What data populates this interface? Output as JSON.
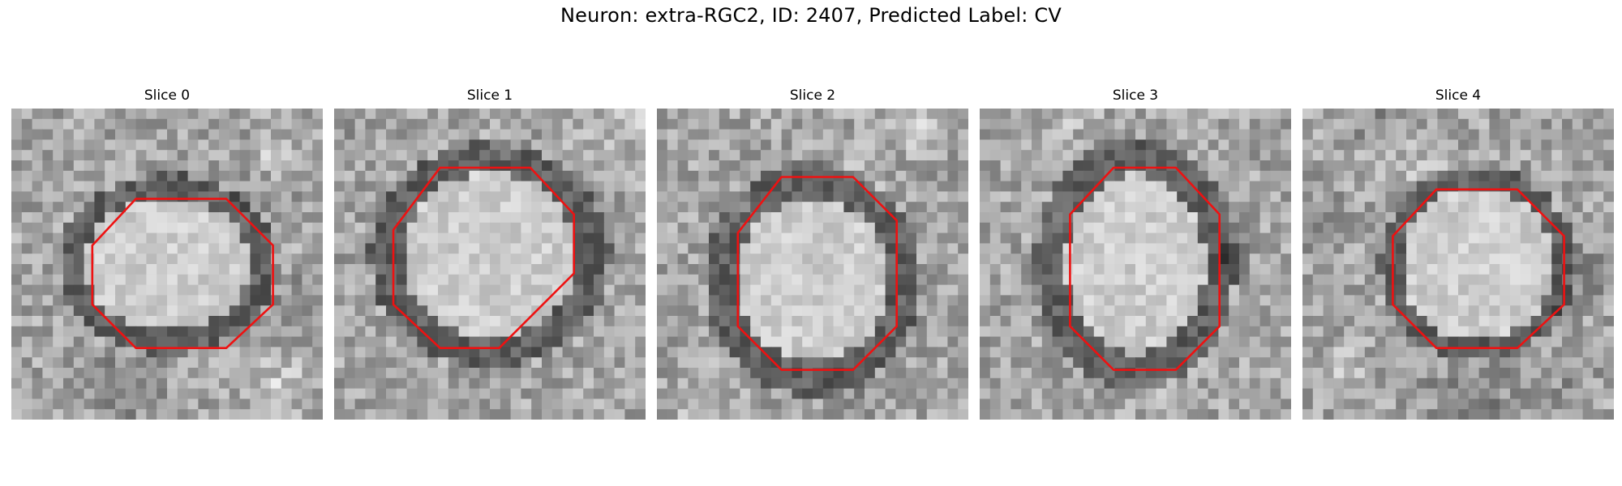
{
  "figure": {
    "title": "Neuron: extra-RGC2, ID: 2407, Predicted Label: CV",
    "outline_color": "#ee1111",
    "colormap": "gray"
  },
  "panels": [
    {
      "label": "Slice 0",
      "seed": 11
    },
    {
      "label": "Slice 1",
      "seed": 23
    },
    {
      "label": "Slice 2",
      "seed": 37
    },
    {
      "label": "Slice 3",
      "seed": 41
    },
    {
      "label": "Slice 4",
      "seed": 53
    }
  ]
}
